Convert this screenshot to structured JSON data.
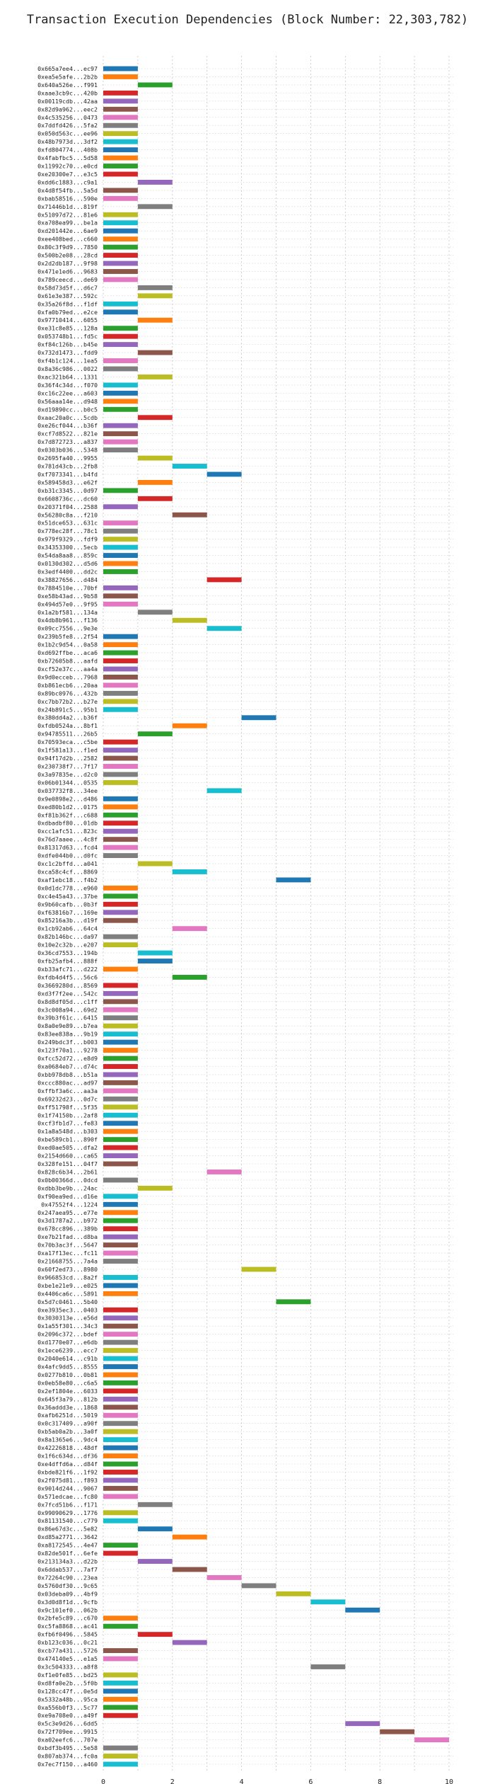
{
  "chart_data": {
    "type": "bar",
    "title": "Transaction Execution Dependencies (Block Number: 22,303,782)",
    "xlabel": "",
    "ylabel": "",
    "xlim": [
      0,
      10
    ],
    "x_ticks": [
      "0",
      "2",
      "4",
      "6",
      "8",
      "10"
    ],
    "grid": true,
    "palette": [
      "#1f77b4",
      "#ff7f0e",
      "#2ca02c",
      "#d62728",
      "#9467bd",
      "#8c564b",
      "#e377c2",
      "#7f7f7f",
      "#bcbd22",
      "#17becf"
    ],
    "bars": [
      {
        "label": "0x665a7ee4...ec97",
        "start": 0,
        "end": 1
      },
      {
        "label": "0xea5e5afe...2b2b",
        "start": 0,
        "end": 1
      },
      {
        "label": "0x640a526e...f991",
        "start": 1,
        "end": 2
      },
      {
        "label": "0xaae3cb9c...420b",
        "start": 0,
        "end": 1
      },
      {
        "label": "0x00119cdb...42aa",
        "start": 0,
        "end": 1
      },
      {
        "label": "0x82d9a962...eec2",
        "start": 0,
        "end": 1
      },
      {
        "label": "0x4c535256...0473",
        "start": 0,
        "end": 1
      },
      {
        "label": "0x7ddfd426...5fa2",
        "start": 0,
        "end": 1
      },
      {
        "label": "0x050d563c...ee96",
        "start": 0,
        "end": 1
      },
      {
        "label": "0x48b7973d...3df2",
        "start": 0,
        "end": 1
      },
      {
        "label": "0xfd804774...408b",
        "start": 0,
        "end": 1
      },
      {
        "label": "0x4fabfbc5...5d58",
        "start": 0,
        "end": 1
      },
      {
        "label": "0x11992c70...e0cd",
        "start": 0,
        "end": 1
      },
      {
        "label": "0xe20300e7...e3c5",
        "start": 0,
        "end": 1
      },
      {
        "label": "0xdd6c1883...c9a1",
        "start": 1,
        "end": 2
      },
      {
        "label": "0x4d8f54fb...5a5d",
        "start": 0,
        "end": 1
      },
      {
        "label": "0xbab58516...590e",
        "start": 0,
        "end": 1
      },
      {
        "label": "0x71446b1d...819f",
        "start": 1,
        "end": 2
      },
      {
        "label": "0x51097d72...81e6",
        "start": 0,
        "end": 1
      },
      {
        "label": "0xa708ea99...be1a",
        "start": 0,
        "end": 1
      },
      {
        "label": "0xd201442e...6ae9",
        "start": 0,
        "end": 1
      },
      {
        "label": "0xee408bed...c660",
        "start": 0,
        "end": 1
      },
      {
        "label": "0x80c3f9d9...7850",
        "start": 0,
        "end": 1
      },
      {
        "label": "0x500b2e08...28cd",
        "start": 0,
        "end": 1
      },
      {
        "label": "0x2d2db187...9f98",
        "start": 0,
        "end": 1
      },
      {
        "label": "0x471e1ed6...9683",
        "start": 0,
        "end": 1
      },
      {
        "label": "0x789ceecd...de69",
        "start": 0,
        "end": 1
      },
      {
        "label": "0x58d73d5f...d6c7",
        "start": 1,
        "end": 2
      },
      {
        "label": "0x61e3e387...592c",
        "start": 1,
        "end": 2
      },
      {
        "label": "0x35a26f8d...f1df",
        "start": 0,
        "end": 1
      },
      {
        "label": "0xfa0b79ed...e2ce",
        "start": 0,
        "end": 1
      },
      {
        "label": "0x97710414...6055",
        "start": 1,
        "end": 2
      },
      {
        "label": "0xe31c8e85...128a",
        "start": 0,
        "end": 1
      },
      {
        "label": "0x053748b1...fd5c",
        "start": 0,
        "end": 1
      },
      {
        "label": "0xf84c126b...b45e",
        "start": 0,
        "end": 1
      },
      {
        "label": "0x732d1473...fdd9",
        "start": 1,
        "end": 2
      },
      {
        "label": "0xf4b1c124...1ea5",
        "start": 0,
        "end": 1
      },
      {
        "label": "0x8a36c986...0022",
        "start": 0,
        "end": 1
      },
      {
        "label": "0xac321b64...1331",
        "start": 1,
        "end": 2
      },
      {
        "label": "0x36f4c34d...f070",
        "start": 0,
        "end": 1
      },
      {
        "label": "0xc16c22ee...a603",
        "start": 0,
        "end": 1
      },
      {
        "label": "0x56aaa14e...d948",
        "start": 0,
        "end": 1
      },
      {
        "label": "0xd19890cc...b0c5",
        "start": 0,
        "end": 1
      },
      {
        "label": "0xaac20a0c...5cdb",
        "start": 1,
        "end": 2
      },
      {
        "label": "0xe26cf044...b36f",
        "start": 0,
        "end": 1
      },
      {
        "label": "0xcf7d8522...821e",
        "start": 0,
        "end": 1
      },
      {
        "label": "0x7d872723...a837",
        "start": 0,
        "end": 1
      },
      {
        "label": "0x0303b036...5348",
        "start": 0,
        "end": 1
      },
      {
        "label": "0x2695fa40...9955",
        "start": 1,
        "end": 2
      },
      {
        "label": "0x781d43cb...2fb8",
        "start": 2,
        "end": 3
      },
      {
        "label": "0xf7073341...b4fd",
        "start": 3,
        "end": 4
      },
      {
        "label": "0x589458d3...e62f",
        "start": 1,
        "end": 2
      },
      {
        "label": "0xb31c3345...0d97",
        "start": 0,
        "end": 1
      },
      {
        "label": "0x6608736c...dc60",
        "start": 1,
        "end": 2
      },
      {
        "label": "0x20371f04...2588",
        "start": 0,
        "end": 1
      },
      {
        "label": "0x56280c8a...f210",
        "start": 2,
        "end": 3
      },
      {
        "label": "0x51dce653...631c",
        "start": 0,
        "end": 1
      },
      {
        "label": "0x778ec28f...78c1",
        "start": 0,
        "end": 1
      },
      {
        "label": "0x979f9329...fdf9",
        "start": 0,
        "end": 1
      },
      {
        "label": "0x34353300...5ecb",
        "start": 0,
        "end": 1
      },
      {
        "label": "0x54da8aa8...859c",
        "start": 0,
        "end": 1
      },
      {
        "label": "0x0130d302...d5d6",
        "start": 0,
        "end": 1
      },
      {
        "label": "0x3edf4400...dd2c",
        "start": 0,
        "end": 1
      },
      {
        "label": "0x38827656...d484",
        "start": 3,
        "end": 4
      },
      {
        "label": "0x7884510e...70bf",
        "start": 0,
        "end": 1
      },
      {
        "label": "0xe58b43ad...9b58",
        "start": 0,
        "end": 1
      },
      {
        "label": "0x494d57e0...9f95",
        "start": 0,
        "end": 1
      },
      {
        "label": "0x1a2bf581...134a",
        "start": 1,
        "end": 2
      },
      {
        "label": "0x4db8b961...f136",
        "start": 2,
        "end": 3
      },
      {
        "label": "0x09cc7556...9e3e",
        "start": 3,
        "end": 4
      },
      {
        "label": "0x239b5fe8...2f54",
        "start": 0,
        "end": 1
      },
      {
        "label": "0x1b2c9d54...0a58",
        "start": 0,
        "end": 1
      },
      {
        "label": "0xd692ffbe...aca6",
        "start": 0,
        "end": 1
      },
      {
        "label": "0xb72605b8...aafd",
        "start": 0,
        "end": 1
      },
      {
        "label": "0xcf52e37c...aa4a",
        "start": 0,
        "end": 1
      },
      {
        "label": "0x9d0ecceb...7968",
        "start": 0,
        "end": 1
      },
      {
        "label": "0xb861ecb6...20aa",
        "start": 0,
        "end": 1
      },
      {
        "label": "0x89bc0976...432b",
        "start": 0,
        "end": 1
      },
      {
        "label": "0xc7bb72b2...b27e",
        "start": 0,
        "end": 1
      },
      {
        "label": "0x24b891c5...95b1",
        "start": 0,
        "end": 1
      },
      {
        "label": "0x380dd4a2...b36f",
        "start": 4,
        "end": 5
      },
      {
        "label": "0xfdb0524a...8bf1",
        "start": 2,
        "end": 3
      },
      {
        "label": "0x94785511...26b5",
        "start": 1,
        "end": 2
      },
      {
        "label": "0x70593eca...c5be",
        "start": 0,
        "end": 1
      },
      {
        "label": "0x1f581a13...f1ed",
        "start": 0,
        "end": 1
      },
      {
        "label": "0x94f17d2b...2582",
        "start": 0,
        "end": 1
      },
      {
        "label": "0x230738f7...7f17",
        "start": 0,
        "end": 1
      },
      {
        "label": "0x3a97835e...d2c0",
        "start": 0,
        "end": 1
      },
      {
        "label": "0x06b01344...0535",
        "start": 0,
        "end": 1
      },
      {
        "label": "0x037732f8...34ee",
        "start": 3,
        "end": 4
      },
      {
        "label": "0x9e0898e2...d486",
        "start": 0,
        "end": 1
      },
      {
        "label": "0xed80b1d2...0175",
        "start": 0,
        "end": 1
      },
      {
        "label": "0xf81b362f...c688",
        "start": 0,
        "end": 1
      },
      {
        "label": "0xdbadbf80...01db",
        "start": 0,
        "end": 1
      },
      {
        "label": "0xcc1afc51...823c",
        "start": 0,
        "end": 1
      },
      {
        "label": "0x76d7aaee...4c8f",
        "start": 0,
        "end": 1
      },
      {
        "label": "0x81317d63...fcd4",
        "start": 0,
        "end": 1
      },
      {
        "label": "0xdfe044b0...d0fc",
        "start": 0,
        "end": 1
      },
      {
        "label": "0xc1c2bffd...a041",
        "start": 1,
        "end": 2
      },
      {
        "label": "0xca58c4cf...8869",
        "start": 2,
        "end": 3
      },
      {
        "label": "0xaf1ebc18...f4b2",
        "start": 5,
        "end": 6
      },
      {
        "label": "0x0d1dc778...e960",
        "start": 0,
        "end": 1
      },
      {
        "label": "0xc4e45a43...37be",
        "start": 0,
        "end": 1
      },
      {
        "label": "0x9b60cafb...0b3f",
        "start": 0,
        "end": 1
      },
      {
        "label": "0xf63816b7...169e",
        "start": 0,
        "end": 1
      },
      {
        "label": "0x85216a3b...d19f",
        "start": 0,
        "end": 1
      },
      {
        "label": "0x1cb92ab6...64c4",
        "start": 2,
        "end": 3
      },
      {
        "label": "0x82b146bc...da97",
        "start": 0,
        "end": 1
      },
      {
        "label": "0x10e2c32b...e207",
        "start": 0,
        "end": 1
      },
      {
        "label": "0x36cd7553...194b",
        "start": 1,
        "end": 2
      },
      {
        "label": "0xfb25afb4...888f",
        "start": 1,
        "end": 2
      },
      {
        "label": "0xb33afc71...d222",
        "start": 0,
        "end": 1
      },
      {
        "label": "0xfdb4d4f5...56c6",
        "start": 2,
        "end": 3
      },
      {
        "label": "0x3669280d...8569",
        "start": 0,
        "end": 1
      },
      {
        "label": "0xd3f7f2ee...542c",
        "start": 0,
        "end": 1
      },
      {
        "label": "0x8d8df05d...c1ff",
        "start": 0,
        "end": 1
      },
      {
        "label": "0x3c008a94...69d2",
        "start": 0,
        "end": 1
      },
      {
        "label": "0x39b3f61c...6415",
        "start": 0,
        "end": 1
      },
      {
        "label": "0x8a0e9e89...b7ea",
        "start": 0,
        "end": 1
      },
      {
        "label": "0x83ee838a...9b19",
        "start": 0,
        "end": 1
      },
      {
        "label": "0x249bdc3f...b003",
        "start": 0,
        "end": 1
      },
      {
        "label": "0x123f70a1...9278",
        "start": 0,
        "end": 1
      },
      {
        "label": "0xfcc52d72...e8d9",
        "start": 0,
        "end": 1
      },
      {
        "label": "0xa0684eb7...d74c",
        "start": 0,
        "end": 1
      },
      {
        "label": "0xbb978db8...b51a",
        "start": 0,
        "end": 1
      },
      {
        "label": "0xccc880ac...ad97",
        "start": 0,
        "end": 1
      },
      {
        "label": "0xffbf3a6c...aa3a",
        "start": 0,
        "end": 1
      },
      {
        "label": "0x69232d23...0d7c",
        "start": 0,
        "end": 1
      },
      {
        "label": "0xff51798f...5f35",
        "start": 0,
        "end": 1
      },
      {
        "label": "0x1f74150b...2af8",
        "start": 0,
        "end": 1
      },
      {
        "label": "0xcf3fb1d7...fe83",
        "start": 0,
        "end": 1
      },
      {
        "label": "0x1a8a548d...b303",
        "start": 0,
        "end": 1
      },
      {
        "label": "0xbe589cb1...890f",
        "start": 0,
        "end": 1
      },
      {
        "label": "0xed0ae505...dfa2",
        "start": 0,
        "end": 1
      },
      {
        "label": "0x2154d660...ca65",
        "start": 0,
        "end": 1
      },
      {
        "label": "0x328fe151...04f7",
        "start": 0,
        "end": 1
      },
      {
        "label": "0x828c6b34...2b61",
        "start": 3,
        "end": 4
      },
      {
        "label": "0x0b00366d...0dcd",
        "start": 0,
        "end": 1
      },
      {
        "label": "0xdbb3be9b...24ac",
        "start": 1,
        "end": 2
      },
      {
        "label": "0xf90ea9ed...d16e",
        "start": 0,
        "end": 1
      },
      {
        "label": "0x47552f4...1224",
        "start": 0,
        "end": 1
      },
      {
        "label": "0x247aea95...e77e",
        "start": 0,
        "end": 1
      },
      {
        "label": "0x3d1787a2...b972",
        "start": 0,
        "end": 1
      },
      {
        "label": "0x678cc896...389b",
        "start": 0,
        "end": 1
      },
      {
        "label": "0xe7b21fad...d8ba",
        "start": 0,
        "end": 1
      },
      {
        "label": "0x70b3ac3f...5647",
        "start": 0,
        "end": 1
      },
      {
        "label": "0xa17f13ec...fc11",
        "start": 0,
        "end": 1
      },
      {
        "label": "0x21668755...7a4a",
        "start": 0,
        "end": 1
      },
      {
        "label": "0x60f2ed73...8980",
        "start": 4,
        "end": 5
      },
      {
        "label": "0x966853cd...8a2f",
        "start": 0,
        "end": 1
      },
      {
        "label": "0xbe1e21e9...e025",
        "start": 0,
        "end": 1
      },
      {
        "label": "0x4406ca6c...5891",
        "start": 0,
        "end": 1
      },
      {
        "label": "0x5d7c0461...5b40",
        "start": 5,
        "end": 6
      },
      {
        "label": "0xe3935ec3...0403",
        "start": 0,
        "end": 1
      },
      {
        "label": "0x3030313e...e56d",
        "start": 0,
        "end": 1
      },
      {
        "label": "0x1a55f301...34c3",
        "start": 0,
        "end": 1
      },
      {
        "label": "0x2096c372...bdef",
        "start": 0,
        "end": 1
      },
      {
        "label": "0xd1770e07...e6db",
        "start": 0,
        "end": 1
      },
      {
        "label": "0x1ece6239...ecc7",
        "start": 0,
        "end": 1
      },
      {
        "label": "0x2040e614...c91b",
        "start": 0,
        "end": 1
      },
      {
        "label": "0x4afc9dd5...8555",
        "start": 0,
        "end": 1
      },
      {
        "label": "0x0277b810...0b81",
        "start": 0,
        "end": 1
      },
      {
        "label": "0x0eb58e80...c6a5",
        "start": 0,
        "end": 1
      },
      {
        "label": "0x2ef1804e...6033",
        "start": 0,
        "end": 1
      },
      {
        "label": "0x645f3a79...812b",
        "start": 0,
        "end": 1
      },
      {
        "label": "0x36addd3e...1868",
        "start": 0,
        "end": 1
      },
      {
        "label": "0xafb6251d...5019",
        "start": 0,
        "end": 1
      },
      {
        "label": "0x0c317409...a90f",
        "start": 0,
        "end": 1
      },
      {
        "label": "0xb5ab0a2b...3a0f",
        "start": 0,
        "end": 1
      },
      {
        "label": "0x8a1365e6...9dc4",
        "start": 0,
        "end": 1
      },
      {
        "label": "0x42226818...48df",
        "start": 0,
        "end": 1
      },
      {
        "label": "0x1f6c634d...df36",
        "start": 0,
        "end": 1
      },
      {
        "label": "0xe4dffd6a...d84f",
        "start": 0,
        "end": 1
      },
      {
        "label": "0xbde821f6...1f92",
        "start": 0,
        "end": 1
      },
      {
        "label": "0x2f075d81...f893",
        "start": 0,
        "end": 1
      },
      {
        "label": "0x9014d244...9067",
        "start": 0,
        "end": 1
      },
      {
        "label": "0x571edcae...fc80",
        "start": 0,
        "end": 1
      },
      {
        "label": "0x7fcd51b6...f171",
        "start": 1,
        "end": 2
      },
      {
        "label": "0x99090629...1776",
        "start": 0,
        "end": 1
      },
      {
        "label": "0x81131540...c779",
        "start": 0,
        "end": 1
      },
      {
        "label": "0x86e67d3c...5e82",
        "start": 1,
        "end": 2
      },
      {
        "label": "0xd85a2771...3642",
        "start": 2,
        "end": 3
      },
      {
        "label": "0xa8172545...4e47",
        "start": 0,
        "end": 1
      },
      {
        "label": "0x82de501f...6efe",
        "start": 0,
        "end": 1
      },
      {
        "label": "0x213134a3...d22b",
        "start": 1,
        "end": 2
      },
      {
        "label": "0x6ddab537...7af7",
        "start": 2,
        "end": 3
      },
      {
        "label": "0x72264c90...23ea",
        "start": 3,
        "end": 4
      },
      {
        "label": "0x5760df30...9c65",
        "start": 4,
        "end": 5
      },
      {
        "label": "0x03deba09...4bf9",
        "start": 5,
        "end": 6
      },
      {
        "label": "0x3d0d8f1d...9cfb",
        "start": 6,
        "end": 7
      },
      {
        "label": "0x9c101ef0...062b",
        "start": 7,
        "end": 8
      },
      {
        "label": "0x2bfe5c89...c670",
        "start": 0,
        "end": 1
      },
      {
        "label": "0xc5fa8868...ac41",
        "start": 0,
        "end": 1
      },
      {
        "label": "0xfb6f0496...5845",
        "start": 1,
        "end": 2
      },
      {
        "label": "0xb123c036...0c21",
        "start": 2,
        "end": 3
      },
      {
        "label": "0xcb77a431...5726",
        "start": 0,
        "end": 1
      },
      {
        "label": "0x474140e5...e1a5",
        "start": 0,
        "end": 1
      },
      {
        "label": "0x3c504333...a8f8",
        "start": 6,
        "end": 7
      },
      {
        "label": "0xf1e0fe85...bd25",
        "start": 0,
        "end": 1
      },
      {
        "label": "0xd8fa0e2b...5f0b",
        "start": 0,
        "end": 1
      },
      {
        "label": "0x128cc47f...0e5d",
        "start": 0,
        "end": 1
      },
      {
        "label": "0x5332a48b...95ca",
        "start": 0,
        "end": 1
      },
      {
        "label": "0xa556b0f3...5c77",
        "start": 0,
        "end": 1
      },
      {
        "label": "0xe9a708e0...a49f",
        "start": 0,
        "end": 1
      },
      {
        "label": "0x5c3e9d26...6dd5",
        "start": 7,
        "end": 8
      },
      {
        "label": "0x72f709ee...9915",
        "start": 8,
        "end": 9
      },
      {
        "label": "0xa02eefc6...707e",
        "start": 9,
        "end": 10
      },
      {
        "label": "0xbdf3b495...5e58",
        "start": 0,
        "end": 1
      },
      {
        "label": "0x807ab374...fc0a",
        "start": 0,
        "end": 1
      },
      {
        "label": "0x7ec7f150...a460",
        "start": 0,
        "end": 1
      }
    ]
  }
}
